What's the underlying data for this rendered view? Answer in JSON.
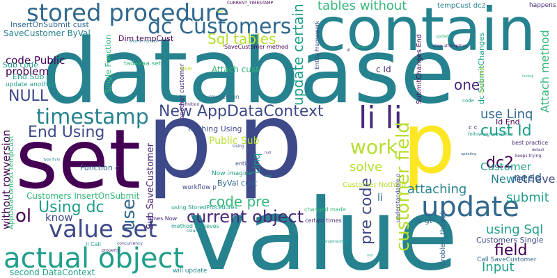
{
  "background": "#ffffff",
  "palette": {
    "c1": "#440154",
    "c2": "#482878",
    "c3": "#3e4989",
    "c4": "#31688e",
    "c5": "#26828e",
    "c6": "#1f9e89",
    "c7": "#35b779",
    "c8": "#6ece58",
    "c9": "#b5de2b",
    "c10": "#fde725"
  },
  "words": {
    "database": "database",
    "value_big": "value",
    "contain": "contain",
    "set": "set",
    "p1": "p",
    "p2": "p",
    "p3": "p",
    "stored_procedure": "stored procedure",
    "dc_customers": "dc Customers",
    "tables_without": "tables without",
    "timestamp": "timestamp",
    "lili": "li li",
    "update": "update",
    "actual_object": "actual object",
    "value_set": "value set",
    "new_appdatacontext": "New AppDataContext",
    "current_object": "current object",
    "customer_field": "customer field",
    "cust_id": "cust Id",
    "end_using": "End Using",
    "null": "NULL",
    "using_dc": "Using dc",
    "ol": "ol",
    "use": "use",
    "sql_tables": "Sql tables",
    "pre_code": "pre code",
    "code_pre": "code pre",
    "update_certain": "update certain",
    "dc2": "dc2",
    "one": "one",
    "work": "work",
    "submit": "submit",
    "field": "field",
    "input": "Input",
    "retrieve": "retrieve",
    "attaching": "attaching",
    "new": "New",
    "need": "need",
    "customer": "Customer",
    "solve": "solve",
    "use_linq": "use Linq",
    "attach_method": "Attach method",
    "using_sql": "using Sql",
    "code_public": "code Public",
    "problem": "problem",
    "know": "know",
    "without_rowversion": "without rowversion",
    "second_datacontext": "second DataContext",
    "customers_insertonsubmit": "Customers InsertOnSubmit",
    "insertonsubmit_cust": "InsertOnSubmit cust",
    "savecustomer_byval": "SaveCustomer ByVal",
    "dim_tempcust": "Dim tempCust",
    "tempcust_dc2": "tempCust dc2",
    "submitchanges_end": "SubmitChanges End",
    "dc_submitchanges": "dc SubmitChanges",
    "attach_cust": "Attach cust",
    "end_sub": "End Sub",
    "sub_code": "Sub code",
    "update_another": "update another",
    "public_sub": "Public Sub",
    "sub_savecustomer": "Sub SaveCustomer",
    "linq": "Linq",
    "id_end": "Id End",
    "c_id": "c Id",
    "li": "li",
    "id_gt": "Id gt",
    "byval_cust": "ByVal cust",
    "function_c": "Function c",
    "customer_nothing": "Customer Nothing",
    "nothing_using": "Nothing Using",
    "customers_single": "Customers Single",
    "call_savecustomer": "Call SaveCustomer",
    "happens_now": "happens now",
    "entity": "entity",
    "workflow_p": "workflow p",
    "now_imagine": "Now imagine",
    "single_function": "Single Function",
    "tadaaaa_set": "tadaaaa set",
    "another_customer": "another customer",
    "rowversion": "rowversion",
    "entity_framework": "Entity Framework",
    "savecustomer_method": "SaveCustomer method",
    "current_timestamp": "CURRENT_TIMESTAMP",
    "best_practice": "best practice",
    "changed_made": "changed made",
    "problem_though": "problem though",
    "certain_times": "certain times",
    "using_storedprocedures": "using StoredProcedures",
    "method_retrieves": "method retrieves",
    "times_now": "times Now",
    "will_update": "will update",
    "li_call": "li Call",
    "appdatacontext_tempcust": "AppDataContext tempCust",
    "following_workflow": "following workflow",
    "cc": "c c",
    "understandable_p": "understandable p",
    "stop_attempting": "stop attempting",
    "keeps_trying": "keeps trying",
    "update_small": "update",
    "column_within": "column within",
    "definition": "definition",
    "table": "table",
    "concurrency": "concurrency",
    "property": "property",
    "tiny1": "Using",
    "tiny2": "column",
    "tiny3": "changetracking",
    "tiny4": "Type Byte",
    "tiny5": "another Function",
    "tiny6": "default",
    "tiny7": "updating",
    "tiny8": "VerCol",
    "tiny9": "new",
    "tiny10": "code",
    "tiny11": "non",
    "tiny12": "set",
    "tiny13": "gt",
    "tiny14": "lookup",
    "tiny15": "null"
  }
}
